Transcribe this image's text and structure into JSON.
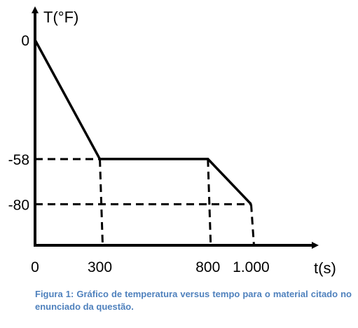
{
  "chart_data": {
    "type": "line",
    "xlabel": "t(s)",
    "ylabel": "T(°F)",
    "x": [
      0,
      300,
      800,
      1000
    ],
    "series": [
      {
        "values": [
          0,
          -58,
          -58,
          -80
        ]
      }
    ],
    "x_ticks": [
      {
        "value": 0,
        "label": "0"
      },
      {
        "value": 300,
        "label": "300"
      },
      {
        "value": 800,
        "label": "800"
      },
      {
        "value": 1000,
        "label": "1.000"
      }
    ],
    "y_ticks": [
      {
        "value": 0,
        "label": "0"
      },
      {
        "value": -58,
        "label": "-58"
      },
      {
        "value": -80,
        "label": "-80"
      }
    ],
    "xlim": [
      0,
      1300
    ],
    "ylim": [
      -100,
      0
    ],
    "grid": false,
    "guides": "dashed",
    "line_color": "#000000"
  },
  "caption": "Figura 1: Gráfico de temperatura versus tempo para o material citado no enunciado da questão."
}
